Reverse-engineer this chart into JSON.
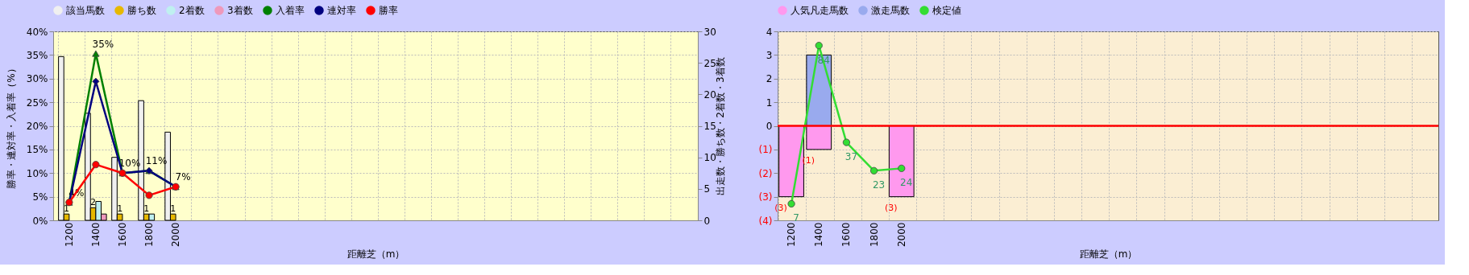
{
  "chart_data": [
    {
      "type": "bar",
      "categories": [
        "1200",
        "1400",
        "1600",
        "1800",
        "2000",
        null,
        null,
        null,
        null,
        null,
        null,
        null,
        null,
        null,
        null,
        null,
        null,
        null,
        null,
        null,
        null,
        null,
        null,
        null
      ],
      "series": [
        {
          "name": "該当馬数",
          "color": "#f0f0f0",
          "axis": "y2",
          "values": [
            26,
            17,
            10,
            19,
            14,
            null,
            null,
            null,
            null,
            null,
            null,
            null,
            null,
            null,
            null,
            null,
            null,
            null,
            null,
            null,
            null,
            null,
            null,
            null
          ]
        },
        {
          "name": "勝ち数",
          "color": "#e6b800",
          "axis": "y2",
          "values": [
            1,
            2,
            1,
            1,
            1,
            null,
            null,
            null,
            null,
            null,
            null,
            null,
            null,
            null,
            null,
            null,
            null,
            null,
            null,
            null,
            null,
            null,
            null,
            null
          ],
          "value_labels": [
            "1",
            "2",
            "1",
            "1",
            "1",
            null,
            null,
            null,
            null,
            null,
            null,
            null,
            null,
            null,
            null,
            null,
            null,
            null,
            null,
            null,
            null,
            null,
            null,
            null
          ]
        },
        {
          "name": "2着数",
          "color": "#bff0f0",
          "axis": "y2",
          "values": [
            0,
            3,
            0,
            1,
            0,
            null,
            null,
            null,
            null,
            null,
            null,
            null,
            null,
            null,
            null,
            null,
            null,
            null,
            null,
            null,
            null,
            null,
            null,
            null
          ]
        },
        {
          "name": "3着数",
          "color": "#ee99bb",
          "axis": "y2",
          "values": [
            0,
            1,
            0,
            0,
            0,
            null,
            null,
            null,
            null,
            null,
            null,
            null,
            null,
            null,
            null,
            null,
            null,
            null,
            null,
            null,
            null,
            null,
            null,
            null
          ]
        },
        {
          "name": "入着率",
          "type": "line",
          "color": "#008000",
          "marker": "triangle",
          "values": [
            3.8,
            35.3,
            10.0,
            10.5,
            7.1,
            null,
            null,
            null,
            null,
            null,
            null,
            null,
            null,
            null,
            null,
            null,
            null,
            null,
            null,
            null,
            null,
            null,
            null,
            null
          ],
          "value_labels": [
            "4%",
            "35%",
            "10%",
            "11%",
            "7%",
            null,
            null,
            null,
            null,
            null,
            null,
            null,
            null,
            null,
            null,
            null,
            null,
            null,
            null,
            null,
            null,
            null,
            null,
            null
          ]
        },
        {
          "name": "連対率",
          "type": "line",
          "color": "#000080",
          "marker": "diamond",
          "values": [
            3.8,
            29.4,
            10.0,
            10.5,
            7.1,
            null,
            null,
            null,
            null,
            null,
            null,
            null,
            null,
            null,
            null,
            null,
            null,
            null,
            null,
            null,
            null,
            null,
            null,
            null
          ]
        },
        {
          "name": "勝率",
          "type": "line",
          "color": "#ff0000",
          "marker": "circle",
          "values": [
            3.8,
            11.8,
            10.0,
            5.3,
            7.1,
            null,
            null,
            null,
            null,
            null,
            null,
            null,
            null,
            null,
            null,
            null,
            null,
            null,
            null,
            null,
            null,
            null,
            null,
            null
          ]
        }
      ],
      "xlabel": "距離芝（m）",
      "ylabel": "勝率・連対率・入着率（%）",
      "y2label": "出走数・勝ち数・2着数・3着数",
      "ylim": [
        0,
        40
      ],
      "yticks": [
        {
          "value": 0,
          "label": "0%"
        },
        {
          "value": 5,
          "label": "5%"
        },
        {
          "value": 10,
          "label": "10%"
        },
        {
          "value": 15,
          "label": "15%"
        },
        {
          "value": 20,
          "label": "20%"
        },
        {
          "value": 25,
          "label": "25%"
        },
        {
          "value": 30,
          "label": "30%"
        },
        {
          "value": 35,
          "label": "35%"
        },
        {
          "value": 40,
          "label": "40%"
        }
      ],
      "y2lim": [
        0,
        30
      ],
      "y2ticks": [
        0,
        5,
        10,
        15,
        20,
        25,
        30
      ],
      "grid": true,
      "legend": "top"
    },
    {
      "type": "bar",
      "stacked": true,
      "categories": [
        "1200",
        "1400",
        "1600",
        "1800",
        "2000",
        null,
        null,
        null,
        null,
        null,
        null,
        null,
        null,
        null,
        null,
        null,
        null,
        null,
        null,
        null,
        null,
        null,
        null,
        null
      ],
      "series": [
        {
          "name": "人気凡走馬数",
          "color": "#ff99ee",
          "values": [
            -3,
            -1,
            null,
            null,
            -3,
            null,
            null,
            null,
            null,
            null,
            null,
            null,
            null,
            null,
            null,
            null,
            null,
            null,
            null,
            null,
            null,
            null,
            null,
            null
          ],
          "value_labels": [
            "(3)",
            "(1)",
            null,
            null,
            "(3)",
            null,
            null,
            null,
            null,
            null,
            null,
            null,
            null,
            null,
            null,
            null,
            null,
            null,
            null,
            null,
            null,
            null,
            null,
            null
          ]
        },
        {
          "name": "激走馬数",
          "color": "#99aaee",
          "values": [
            null,
            3,
            null,
            null,
            null,
            null,
            null,
            null,
            null,
            null,
            null,
            null,
            null,
            null,
            null,
            null,
            null,
            null,
            null,
            null,
            null,
            null,
            null,
            null
          ]
        },
        {
          "name": "検定値",
          "type": "line",
          "color": "#33dd33",
          "marker": "circle",
          "values": [
            -3.3,
            3.4,
            -0.7,
            -1.9,
            -1.8,
            null,
            null,
            null,
            null,
            null,
            null,
            null,
            null,
            null,
            null,
            null,
            null,
            null,
            null,
            null,
            null,
            null,
            null,
            null
          ]
        }
      ],
      "annotations": [
        {
          "text": "7",
          "x": "1200",
          "y": -3.3
        },
        {
          "text": "84",
          "x": "1400",
          "y": 3.4
        },
        {
          "text": "37",
          "x": "1600",
          "y": -0.7
        },
        {
          "text": "23",
          "x": "1800",
          "y": -1.9
        },
        {
          "text": "24",
          "x": "2000",
          "y": -1.8
        }
      ],
      "xlabel": "距離芝（m）",
      "ylim": [
        -4,
        4
      ],
      "yticks": [
        {
          "value": -4,
          "label": "(4)"
        },
        {
          "value": -3,
          "label": "(3)"
        },
        {
          "value": -2,
          "label": "(2)"
        },
        {
          "value": -1,
          "label": "(1)"
        },
        0,
        1,
        2,
        3,
        4
      ],
      "ref_lines": [
        {
          "axis": "y",
          "value": 0,
          "color": "#ff0000"
        }
      ],
      "grid": true,
      "legend": "top"
    }
  ]
}
